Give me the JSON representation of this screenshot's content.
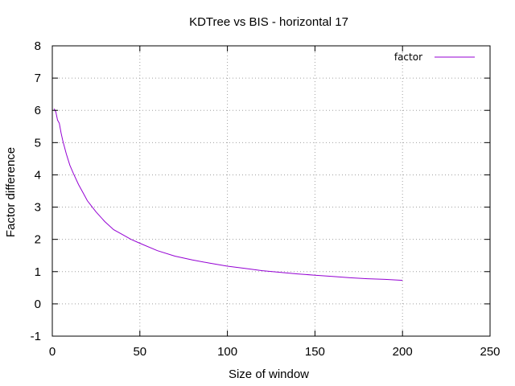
{
  "chart_data": {
    "type": "line",
    "title": "KDTree vs BIS - horizontal 17",
    "xlabel": "Size of window",
    "ylabel": "Factor difference",
    "xlim": [
      0,
      250
    ],
    "ylim": [
      -1,
      8
    ],
    "xticks": [
      0,
      50,
      100,
      150,
      200,
      250
    ],
    "xtick_labels": [
      "0",
      "50",
      "100",
      "150",
      "200",
      "250"
    ],
    "yticks": [
      -1,
      0,
      1,
      2,
      3,
      4,
      5,
      6,
      7,
      8
    ],
    "ytick_labels": [
      "-1",
      "0",
      "1",
      "2",
      "3",
      "4",
      "5",
      "6",
      "7",
      "8"
    ],
    "grid": true,
    "grid_style": "dotted",
    "legend_position": "top-right",
    "series": [
      {
        "name": "factor",
        "color": "#9400d3",
        "x": [
          1,
          2,
          3,
          4,
          5,
          6,
          8,
          10,
          12,
          15,
          18,
          20,
          25,
          30,
          35,
          40,
          45,
          50,
          60,
          70,
          80,
          90,
          100,
          110,
          120,
          130,
          140,
          150,
          160,
          170,
          180,
          190,
          200
        ],
        "y": [
          6.05,
          5.95,
          5.7,
          5.6,
          5.3,
          5.05,
          4.65,
          4.3,
          4.05,
          3.7,
          3.4,
          3.2,
          2.85,
          2.55,
          2.3,
          2.15,
          2.0,
          1.88,
          1.65,
          1.48,
          1.36,
          1.26,
          1.17,
          1.1,
          1.03,
          0.98,
          0.93,
          0.89,
          0.85,
          0.81,
          0.78,
          0.76,
          0.73
        ]
      }
    ]
  }
}
